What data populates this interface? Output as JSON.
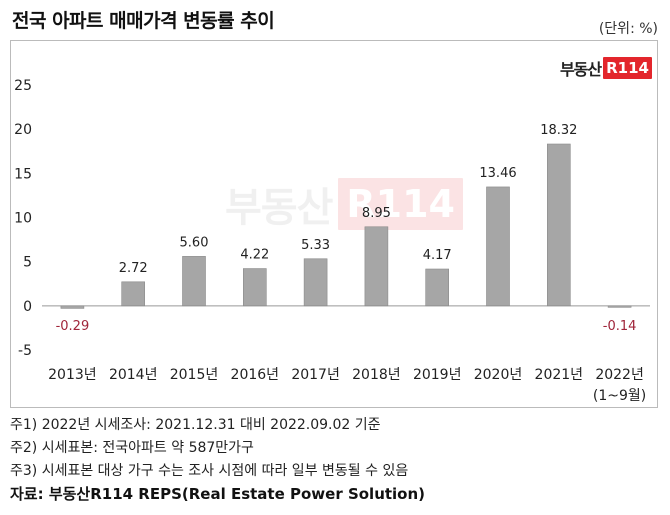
{
  "title": "전국 아파트 매매가격 변동률 추이",
  "unit": "(단위: %)",
  "logo": {
    "text": "부동산",
    "box": "R114"
  },
  "chart_data": {
    "type": "bar",
    "categories": [
      "2013년",
      "2014년",
      "2015년",
      "2016년",
      "2017년",
      "2018년",
      "2019년",
      "2020년",
      "2021년",
      "2022년"
    ],
    "category_sub": [
      "",
      "",
      "",
      "",
      "",
      "",
      "",
      "",
      "",
      "(1~9월)"
    ],
    "values": [
      -0.29,
      2.72,
      5.6,
      4.22,
      5.33,
      8.95,
      4.17,
      13.46,
      18.32,
      -0.14
    ],
    "labels": [
      "-0.29",
      "2.72",
      "5.60",
      "4.22",
      "5.33",
      "8.95",
      "4.17",
      "13.46",
      "18.32",
      "-0.14"
    ],
    "yticks": [
      -5,
      0,
      5,
      10,
      15,
      20,
      25
    ],
    "ylim": [
      -5,
      25
    ],
    "bar_color": "#a6a6a6",
    "negative_label_color": "#a0253a",
    "grid": false
  },
  "notes": [
    "주1) 2022년 시세조사: 2021.12.31 대비 2022.09.02 기준",
    "주2) 시세표본: 전국아파트 약 587만가구",
    "주3) 시세표본 대상 가구 수는 조사 시점에 따라 일부 변동될 수 있음"
  ],
  "source": "자료: 부동산R114 REPS(Real Estate Power Solution)"
}
